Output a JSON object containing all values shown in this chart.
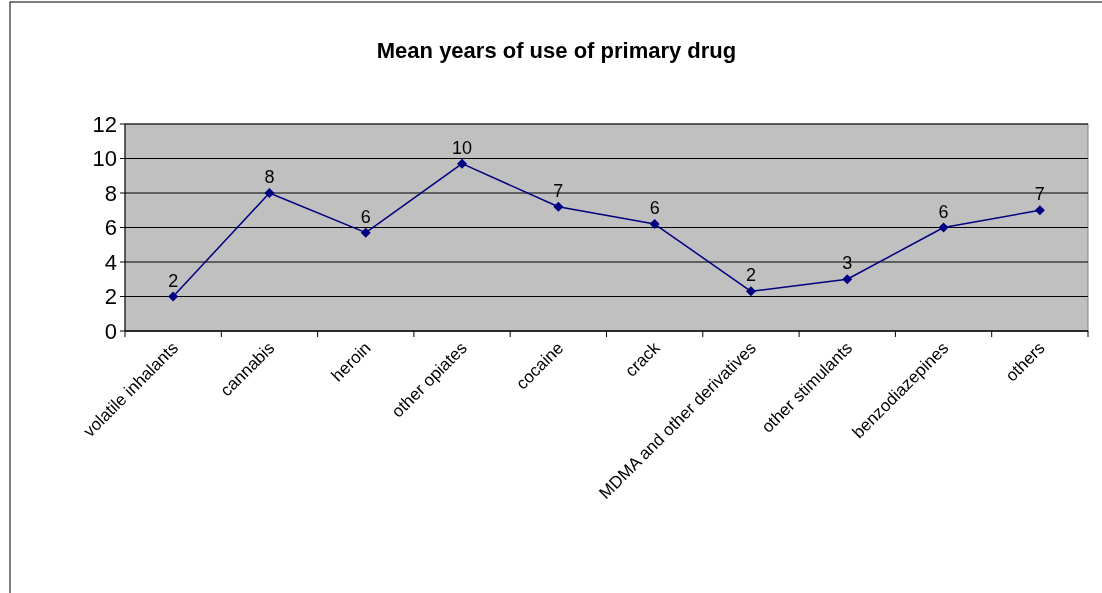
{
  "chart_data": {
    "type": "line",
    "title": "Mean years of use of primary drug",
    "categories": [
      "volatile inhalants",
      "cannabis",
      "heroin",
      "other opiates",
      "cocaine",
      "crack",
      "MDMA and other derivatives",
      "other stimulants",
      "benzodiazepines",
      "others"
    ],
    "series": [
      {
        "color": "#000080",
        "values": [
          2.0,
          8.0,
          5.7,
          9.7,
          7.2,
          6.2,
          2.3,
          3.0,
          6.0,
          7.0
        ],
        "value_labels": [
          "2",
          "8",
          "6",
          "10",
          "7",
          "6",
          "2",
          "3",
          "6",
          "7"
        ]
      }
    ],
    "ylim": [
      0,
      12
    ],
    "yticks": [
      0,
      2,
      4,
      6,
      8,
      10,
      12
    ],
    "grid": "y",
    "marker": "diamond"
  }
}
